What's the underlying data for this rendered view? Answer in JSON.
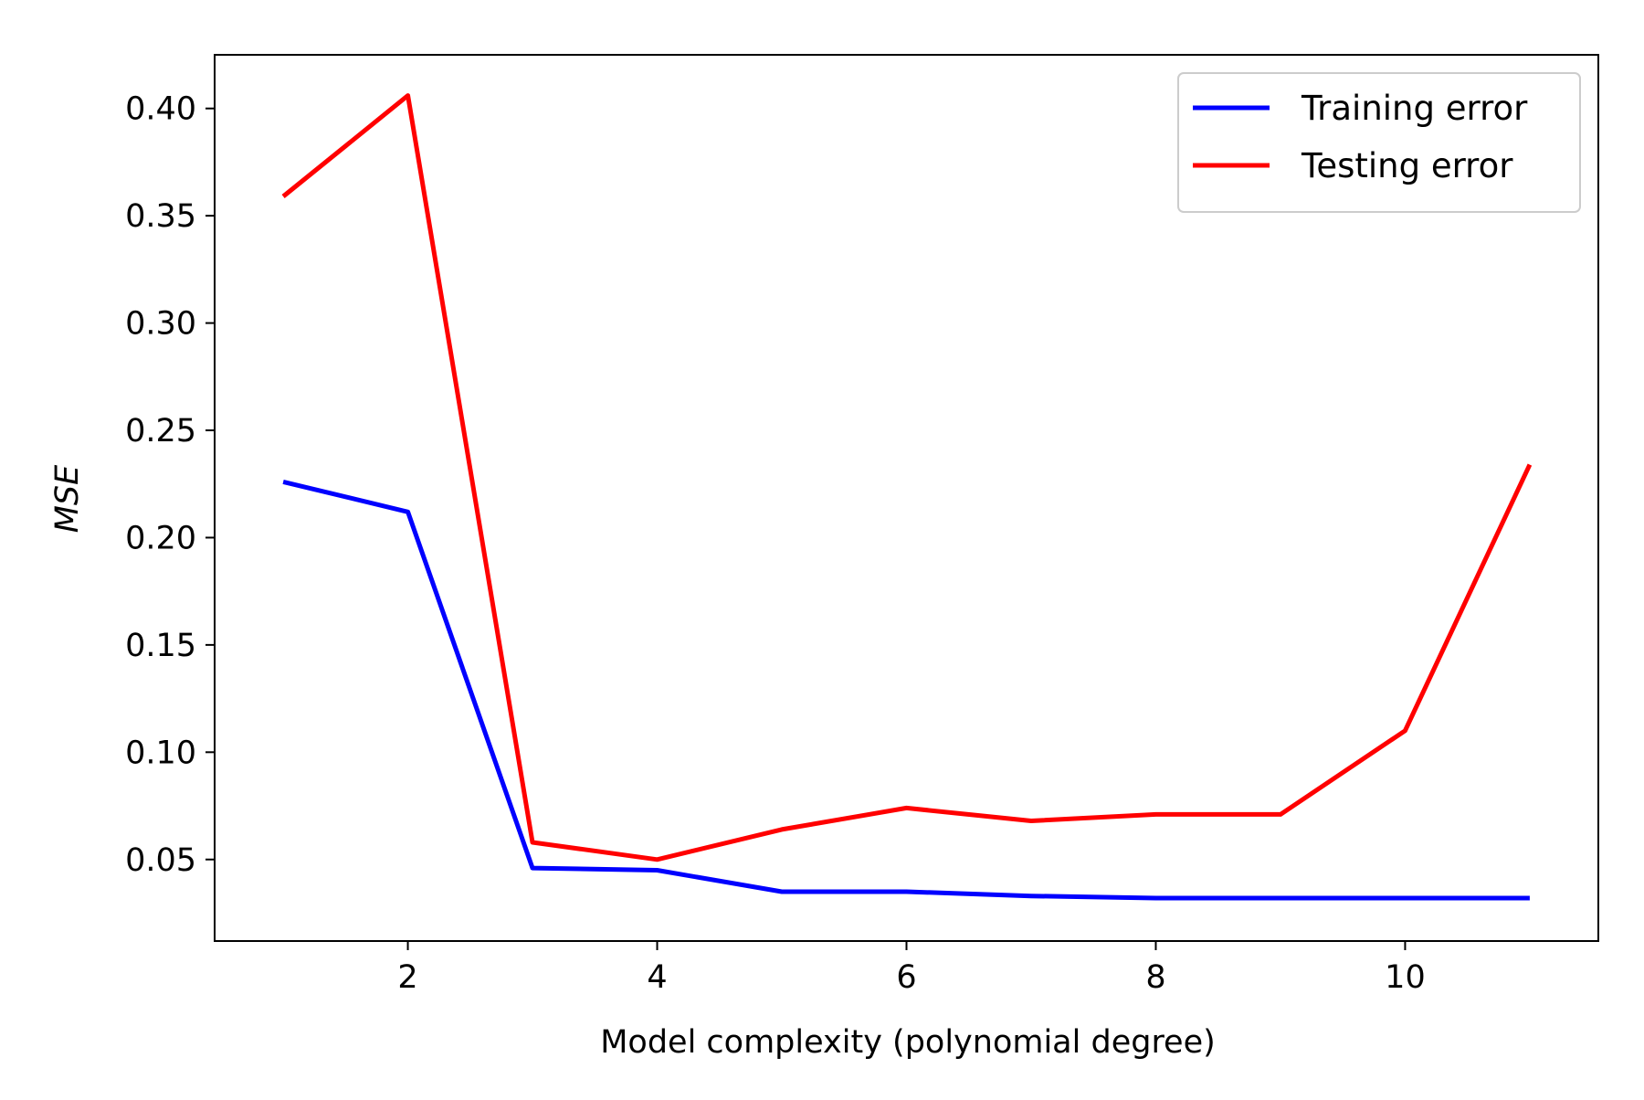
{
  "chart_data": {
    "type": "line",
    "title": "",
    "xlabel": "Model complexity (polynomial degree)",
    "ylabel": "MSE",
    "x": [
      1,
      2,
      3,
      4,
      5,
      6,
      7,
      8,
      9,
      10,
      11
    ],
    "xlim": [
      0.45,
      11.55
    ],
    "ylim": [
      0.012,
      0.425
    ],
    "xticks": [
      2,
      4,
      6,
      8,
      10
    ],
    "xtick_labels": [
      "2",
      "4",
      "6",
      "8",
      "10"
    ],
    "yticks": [
      0.05,
      0.1,
      0.15,
      0.2,
      0.25,
      0.3,
      0.35,
      0.4
    ],
    "ytick_labels": [
      "0.05",
      "0.10",
      "0.15",
      "0.20",
      "0.25",
      "0.30",
      "0.35",
      "0.40"
    ],
    "grid": false,
    "legend_position": "top-right",
    "series": [
      {
        "name": "Training error",
        "color": "#0000ff",
        "values": [
          0.226,
          0.212,
          0.046,
          0.045,
          0.035,
          0.035,
          0.033,
          0.032,
          0.032,
          0.032,
          0.032
        ]
      },
      {
        "name": "Testing error",
        "color": "#ff0000",
        "values": [
          0.359,
          0.406,
          0.058,
          0.05,
          0.064,
          0.074,
          0.068,
          0.071,
          0.071,
          0.11,
          0.234
        ]
      }
    ]
  }
}
